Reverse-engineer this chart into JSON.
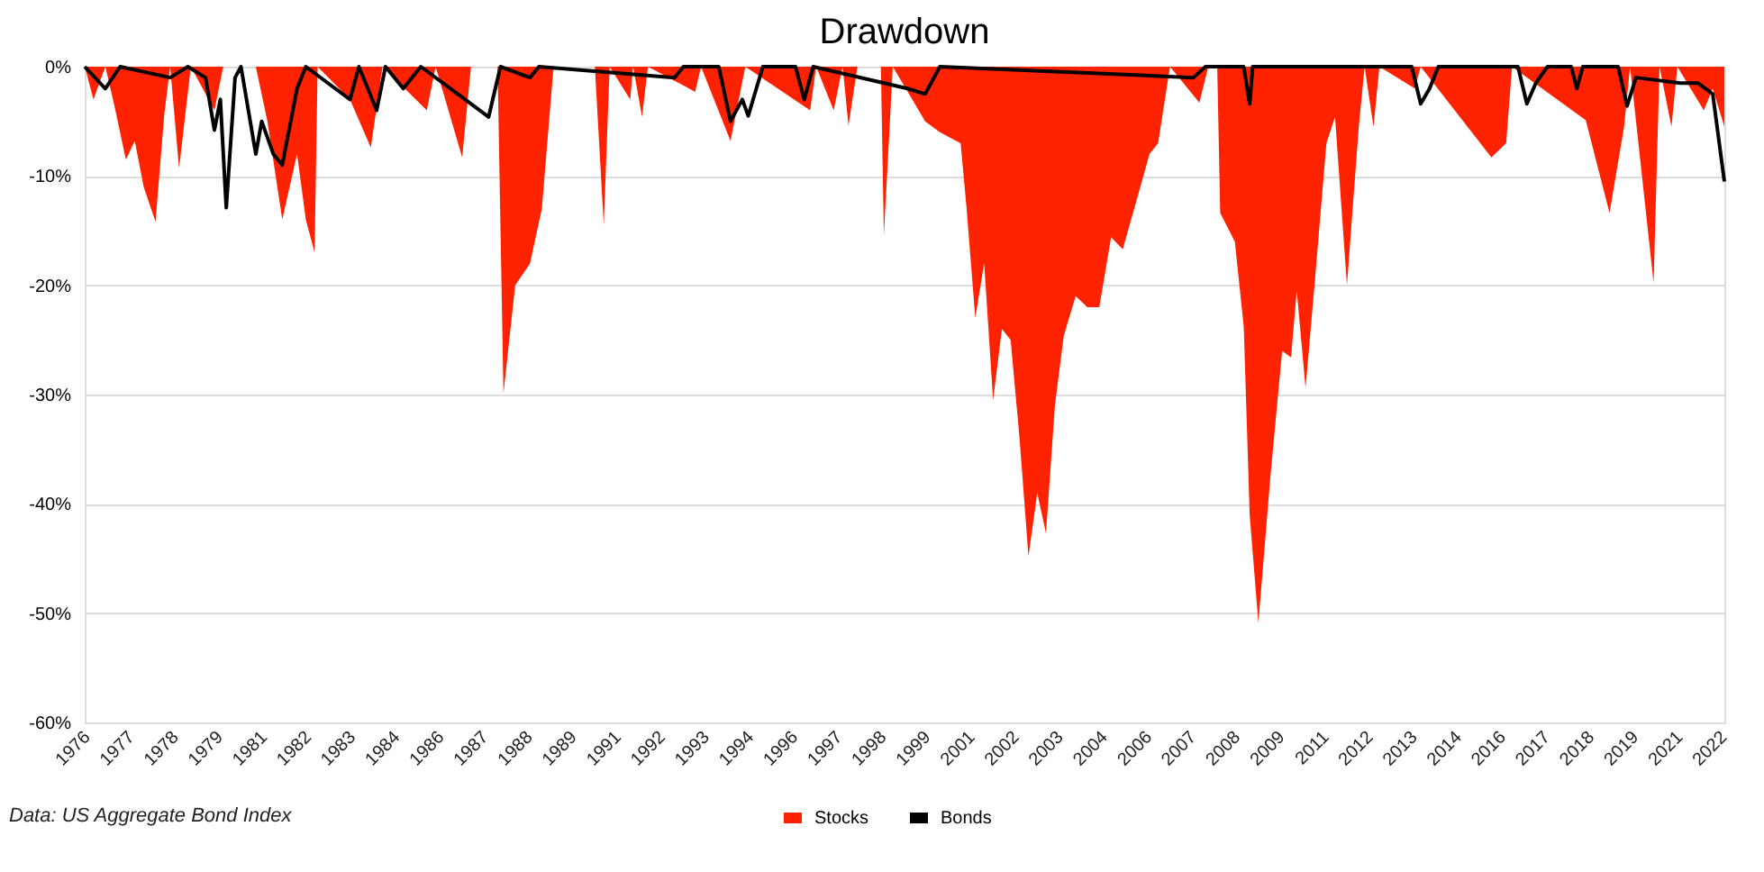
{
  "chart_data": {
    "type": "area",
    "title": "Drawdown",
    "annotations": [
      "Data: US Aggregate Bond Index"
    ],
    "xlim": [
      "1976-01",
      "2022-05"
    ],
    "xticks": [
      {
        "value": "1976-01",
        "label": "1976"
      },
      {
        "value": "1977-04",
        "label": "1977"
      },
      {
        "value": "1978-07",
        "label": "1978"
      },
      {
        "value": "1979-10",
        "label": "1979"
      },
      {
        "value": "1981-01",
        "label": "1981"
      },
      {
        "value": "1982-04",
        "label": "1982"
      },
      {
        "value": "1983-07",
        "label": "1983"
      },
      {
        "value": "1984-10",
        "label": "1984"
      },
      {
        "value": "1986-01",
        "label": "1986"
      },
      {
        "value": "1987-04",
        "label": "1987"
      },
      {
        "value": "1988-07",
        "label": "1988"
      },
      {
        "value": "1989-10",
        "label": "1989"
      },
      {
        "value": "1991-01",
        "label": "1991"
      },
      {
        "value": "1992-04",
        "label": "1992"
      },
      {
        "value": "1993-07",
        "label": "1993"
      },
      {
        "value": "1994-10",
        "label": "1994"
      },
      {
        "value": "1996-01",
        "label": "1996"
      },
      {
        "value": "1997-04",
        "label": "1997"
      },
      {
        "value": "1998-07",
        "label": "1998"
      },
      {
        "value": "1999-10",
        "label": "1999"
      },
      {
        "value": "2001-01",
        "label": "2001"
      },
      {
        "value": "2002-04",
        "label": "2002"
      },
      {
        "value": "2003-07",
        "label": "2003"
      },
      {
        "value": "2004-10",
        "label": "2004"
      },
      {
        "value": "2006-01",
        "label": "2006"
      },
      {
        "value": "2007-04",
        "label": "2007"
      },
      {
        "value": "2008-07",
        "label": "2008"
      },
      {
        "value": "2009-10",
        "label": "2009"
      },
      {
        "value": "2011-01",
        "label": "2011"
      },
      {
        "value": "2012-04",
        "label": "2012"
      },
      {
        "value": "2013-07",
        "label": "2013"
      },
      {
        "value": "2014-10",
        "label": "2014"
      },
      {
        "value": "2016-01",
        "label": "2016"
      },
      {
        "value": "2017-04",
        "label": "2017"
      },
      {
        "value": "2018-07",
        "label": "2018"
      },
      {
        "value": "2019-10",
        "label": "2019"
      },
      {
        "value": "2021-01",
        "label": "2021"
      },
      {
        "value": "2022-04",
        "label": "2022"
      }
    ],
    "ylim": [
      -60,
      0
    ],
    "yticks": [
      {
        "value": 0,
        "label": "0%"
      },
      {
        "value": -10,
        "label": "-10%"
      },
      {
        "value": -20,
        "label": "-20%"
      },
      {
        "value": -30,
        "label": "-30%"
      },
      {
        "value": -40,
        "label": "-40%"
      },
      {
        "value": -50,
        "label": "-50%"
      },
      {
        "value": -60,
        "label": "-60%"
      }
    ],
    "grid": "y",
    "legend": "bottom",
    "series": [
      {
        "name": "Stocks",
        "color": "#ff2200",
        "x": [
          "1976-01",
          "1976-04",
          "1976-08",
          "1976-11",
          "1977-03",
          "1977-06",
          "1977-09",
          "1978-01",
          "1978-04",
          "1978-06",
          "1978-09",
          "1979-01",
          "1979-09",
          "1979-12",
          "1980-11",
          "1981-03",
          "1981-08",
          "1982-01",
          "1982-04",
          "1982-07",
          "1982-08",
          "1983-07",
          "1984-02",
          "1984-06",
          "1985-09",
          "1985-12",
          "1986-09",
          "1986-12",
          "1987-09",
          "1987-11",
          "1988-03",
          "1988-08",
          "1988-12",
          "1989-04",
          "1990-06",
          "1990-09",
          "1990-11",
          "1991-06",
          "1991-07",
          "1991-10",
          "1991-12",
          "1993-04",
          "1993-06",
          "1994-04",
          "1994-09",
          "1996-07",
          "1996-09",
          "1997-03",
          "1997-06",
          "1997-08",
          "1997-11",
          "1998-07",
          "1998-08",
          "1998-11",
          "1999-10",
          "2000-03",
          "2000-10",
          "2000-12",
          "2001-03",
          "2001-06",
          "2001-09",
          "2001-12",
          "2002-03",
          "2002-06",
          "2002-09",
          "2002-12",
          "2003-03",
          "2003-06",
          "2003-09",
          "2004-01",
          "2004-05",
          "2004-09",
          "2005-01",
          "2005-05",
          "2005-10",
          "2006-02",
          "2006-05",
          "2006-09",
          "2007-07",
          "2007-10",
          "2008-01",
          "2008-02",
          "2008-07",
          "2008-10",
          "2008-12",
          "2009-03",
          "2009-07",
          "2009-11",
          "2010-02",
          "2010-04",
          "2010-07",
          "2010-10",
          "2011-02",
          "2011-05",
          "2011-09",
          "2012-01",
          "2012-03",
          "2012-06",
          "2012-08",
          "2013-08",
          "2013-10",
          "2015-10",
          "2016-03",
          "2016-05",
          "2018-06",
          "2019-02",
          "2019-07",
          "2019-09",
          "2020-05",
          "2020-07",
          "2020-11",
          "2021-01",
          "2021-10",
          "2022-01",
          "2022-05"
        ],
        "values": [
          0,
          -3,
          0,
          -3.5,
          -8.5,
          -6.8,
          -11,
          -14.2,
          -4.4,
          0,
          -9.3,
          0,
          -4,
          0,
          0,
          -5,
          -14,
          -8,
          -14,
          -17,
          0,
          -3,
          -7.4,
          0,
          -4,
          0,
          -8.3,
          0,
          0,
          -29.9,
          -20,
          -18,
          -13,
          0,
          0,
          -14.5,
          0,
          -3,
          0,
          -4.6,
          0,
          -2.3,
          0,
          -6.8,
          0,
          -4,
          0,
          -4,
          0,
          -5.4,
          0,
          0,
          -15.4,
          0,
          -5,
          -6,
          -7,
          -12.9,
          -23,
          -18,
          -30.5,
          -24,
          -25,
          -34,
          -44.8,
          -39,
          -42.7,
          -31,
          -24.6,
          -21,
          -22,
          -22,
          -15.6,
          -16.7,
          -11.9,
          -8,
          -7,
          0,
          -3.3,
          0,
          0,
          -13.4,
          -16,
          -23.8,
          -41,
          -50.9,
          -37.7,
          -26,
          -26.6,
          -20.5,
          -29.4,
          -20,
          -7,
          -4.6,
          -20,
          -5.5,
          0,
          -5.5,
          0,
          -2,
          0,
          -8.3,
          -7,
          0,
          -4.9,
          -13.4,
          -5.5,
          0,
          -19.8,
          0,
          -5.5,
          0,
          -4,
          -2,
          -5.5
        ]
      },
      {
        "name": "Bonds",
        "type": "line",
        "color": "#000000",
        "x": [
          "1976-01",
          "1976-08",
          "1977-01",
          "1978-06",
          "1978-12",
          "1979-06",
          "1979-09",
          "1979-11",
          "1980-01",
          "1980-04",
          "1980-06",
          "1980-11",
          "1981-01",
          "1981-05",
          "1981-08",
          "1982-01",
          "1982-04",
          "1983-07",
          "1983-10",
          "1984-04",
          "1984-07",
          "1985-01",
          "1985-07",
          "1987-06",
          "1987-10",
          "1988-08",
          "1988-11",
          "1992-09",
          "1992-12",
          "1993-12",
          "1994-04",
          "1994-08",
          "1994-10",
          "1995-03",
          "1996-02",
          "1996-05",
          "1996-08",
          "1999-04",
          "1999-10",
          "2000-03",
          "2007-05",
          "2007-09",
          "2008-10",
          "2008-12",
          "2009-01",
          "2013-07",
          "2013-10",
          "2014-01",
          "2014-04",
          "2016-07",
          "2016-10",
          "2017-01",
          "2017-05",
          "2018-01",
          "2018-03",
          "2018-05",
          "2019-05",
          "2019-08",
          "2019-11",
          "2021-02",
          "2021-08",
          "2022-01",
          "2022-05"
        ],
        "values": [
          0,
          -2,
          0,
          -1,
          0,
          -1,
          -5.8,
          -3,
          -12.9,
          -1,
          0,
          -8,
          -5,
          -8,
          -9,
          -2,
          0,
          -3,
          0,
          -4,
          0,
          -2,
          0,
          -4.6,
          0,
          -1,
          0,
          -1,
          0,
          0,
          -5,
          -3,
          -4.5,
          0,
          0,
          -3,
          0,
          -2,
          -2.5,
          0,
          -1,
          0,
          0,
          -3.4,
          0,
          0,
          -3.4,
          -2,
          0,
          0,
          -3.4,
          -1.5,
          0,
          0,
          -2,
          0,
          0,
          -3.6,
          -1,
          -1.5,
          -1.5,
          -2.5,
          -10.5
        ]
      }
    ]
  }
}
